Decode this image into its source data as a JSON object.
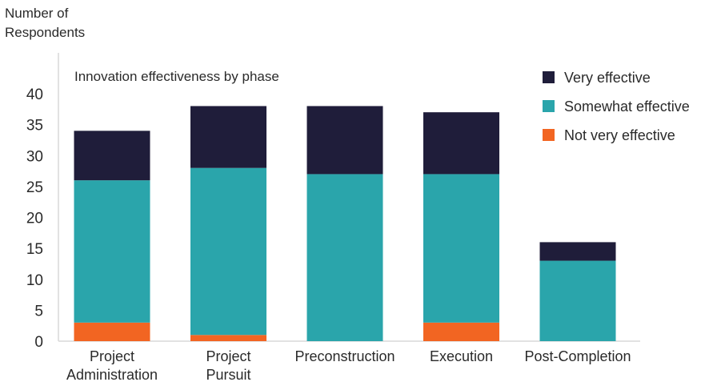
{
  "chart_data": {
    "type": "bar",
    "stacked": true,
    "title": "Innovation effectiveness by phase",
    "ylabel": "Number of Respondents",
    "xlabel": "",
    "ylim": [
      0,
      40
    ],
    "yticks": [
      0,
      5,
      10,
      15,
      20,
      25,
      30,
      35,
      40
    ],
    "grid": false,
    "legend_position": "top-right",
    "categories": [
      "Project Administration",
      "Project Pursuit",
      "Preconstruction",
      "Execution",
      "Post-Completion"
    ],
    "category_lines": [
      [
        "Project",
        "Administration"
      ],
      [
        "Project",
        "Pursuit"
      ],
      [
        "Preconstruction"
      ],
      [
        "Execution"
      ],
      [
        "Post-Completion"
      ]
    ],
    "series": [
      {
        "name": "Not very effective",
        "color": "#f26522",
        "values": [
          3,
          1,
          0,
          3,
          0
        ]
      },
      {
        "name": "Somewhat effective",
        "color": "#2aa5ab",
        "values": [
          23,
          27,
          27,
          24,
          13
        ]
      },
      {
        "name": "Very effective",
        "color": "#1f1d3a",
        "values": [
          8,
          10,
          11,
          10,
          3
        ]
      }
    ],
    "legend_order": [
      "Very effective",
      "Somewhat effective",
      "Not very effective"
    ]
  }
}
